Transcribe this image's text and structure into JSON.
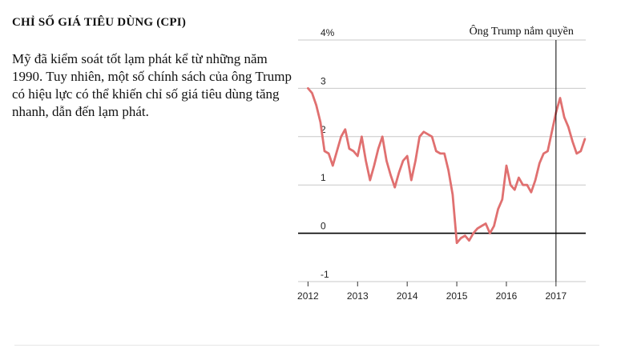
{
  "header": {
    "title": "CHỈ SỐ GIÁ TIÊU DÙNG (CPI)",
    "description": "Mỹ đã kiểm soát tốt lạm phát kể từ những năm 1990. Tuy nhiên, một số chính sách của ông Trump có hiệu lực có thể khiến chỉ số giá tiêu dùng tăng nhanh, dẫn đến lạm phát."
  },
  "chart_data": {
    "type": "line",
    "title": "",
    "xlabel": "",
    "ylabel": "",
    "ylim": [
      -1,
      4
    ],
    "xlim": [
      2011.8,
      2017.6
    ],
    "y_ticks": [
      4,
      3,
      2,
      1,
      0,
      -1
    ],
    "y_tick_labels": [
      "4%",
      "3",
      "2",
      "1",
      "0",
      "-1"
    ],
    "x_ticks": [
      2012,
      2013,
      2014,
      2015,
      2016,
      2017
    ],
    "x_tick_labels": [
      "2012",
      "2013",
      "2014",
      "2015",
      "2016",
      "2017"
    ],
    "grid": "horizontal",
    "zero_line": true,
    "line_color": "#e07070",
    "annotation": {
      "x": 2017.0,
      "label": "Ông Trump nắm quyền"
    },
    "series": [
      {
        "x": [
          2012.0,
          2012.083,
          2012.167,
          2012.25,
          2012.333,
          2012.417,
          2012.5,
          2012.583,
          2012.667,
          2012.75,
          2012.833,
          2012.917,
          2013.0,
          2013.083,
          2013.167,
          2013.25,
          2013.333,
          2013.417,
          2013.5,
          2013.583,
          2013.667,
          2013.75,
          2013.833,
          2013.917,
          2014.0,
          2014.083,
          2014.167,
          2014.25,
          2014.333,
          2014.417,
          2014.5,
          2014.583,
          2014.667,
          2014.75,
          2014.833,
          2014.917,
          2015.0,
          2015.083,
          2015.167,
          2015.25,
          2015.333,
          2015.417,
          2015.5,
          2015.583,
          2015.667,
          2015.75,
          2015.833,
          2015.917,
          2016.0,
          2016.083,
          2016.167,
          2016.25,
          2016.333,
          2016.417,
          2016.5,
          2016.583,
          2016.667,
          2016.75,
          2016.833,
          2016.917,
          2017.0,
          2017.083,
          2017.167,
          2017.25,
          2017.333,
          2017.417,
          2017.5,
          2017.583
        ],
        "values": [
          3.0,
          2.9,
          2.65,
          2.3,
          1.7,
          1.65,
          1.4,
          1.7,
          2.0,
          2.15,
          1.75,
          1.7,
          1.6,
          2.0,
          1.5,
          1.1,
          1.4,
          1.75,
          2.0,
          1.5,
          1.2,
          0.95,
          1.25,
          1.5,
          1.6,
          1.1,
          1.5,
          2.0,
          2.1,
          2.05,
          2.0,
          1.7,
          1.65,
          1.65,
          1.3,
          0.8,
          -0.2,
          -0.1,
          -0.05,
          -0.15,
          0.0,
          0.1,
          0.15,
          0.2,
          0.0,
          0.15,
          0.5,
          0.7,
          1.4,
          1.0,
          0.9,
          1.15,
          1.0,
          1.0,
          0.85,
          1.1,
          1.45,
          1.65,
          1.7,
          2.1,
          2.5,
          2.8,
          2.4,
          2.2,
          1.9,
          1.65,
          1.7,
          1.95
        ]
      }
    ]
  }
}
